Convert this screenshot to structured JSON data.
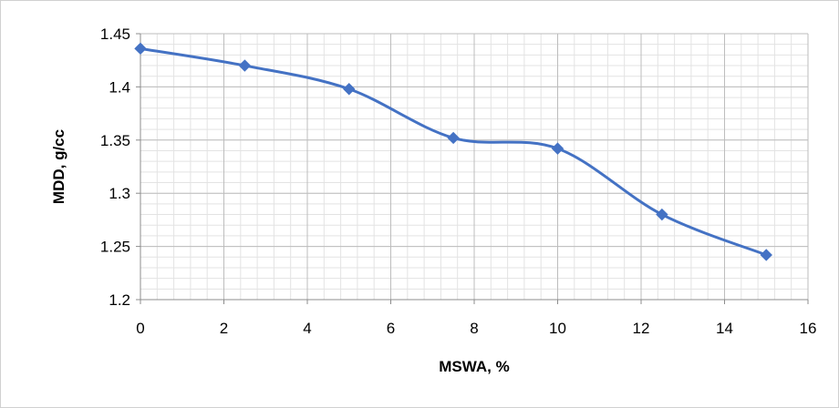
{
  "chart_data": {
    "type": "line",
    "title": "",
    "xlabel": "MSWA, %",
    "ylabel": "MDD, g/cc",
    "xlim": [
      0,
      16
    ],
    "ylim": [
      1.2,
      1.45
    ],
    "x_ticks": [
      0,
      2,
      4,
      6,
      8,
      10,
      12,
      14,
      16
    ],
    "y_ticks": [
      1.2,
      1.25,
      1.3,
      1.35,
      1.4,
      1.45
    ],
    "x_tick_labels": [
      "0",
      "2",
      "4",
      "6",
      "8",
      "10",
      "12",
      "14",
      "16"
    ],
    "y_tick_labels": [
      "1.2",
      "1.25",
      "1.3",
      "1.35",
      "1.4",
      "1.45"
    ],
    "grid": true,
    "minor_grid": true,
    "smooth": true,
    "marker": "diamond",
    "series": [
      {
        "color": "#4472c4",
        "x": [
          0,
          2.5,
          5,
          7.5,
          10,
          12.5,
          15
        ],
        "y": [
          1.436,
          1.42,
          1.398,
          1.352,
          1.342,
          1.28,
          1.242
        ]
      }
    ]
  }
}
